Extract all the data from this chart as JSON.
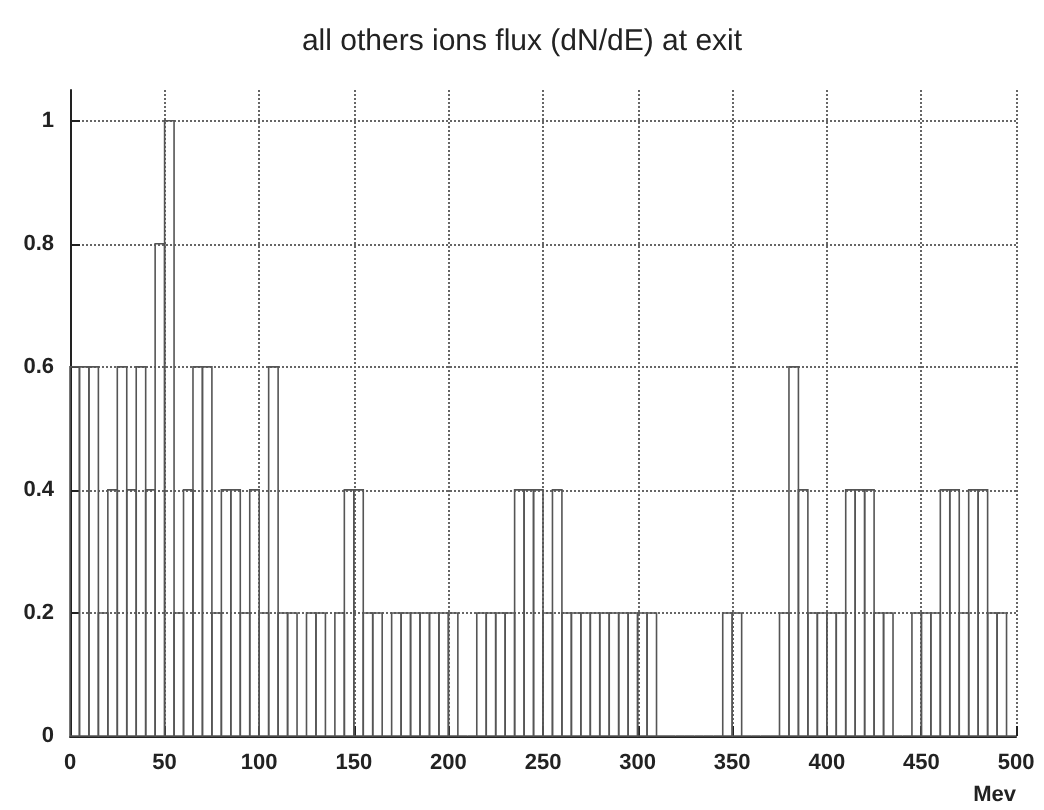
{
  "chart_data": {
    "type": "histogram",
    "title": "all others ions flux (dN/dE) at exit",
    "xlabel": "Mev",
    "bins": [
      0,
      5,
      10,
      15,
      20,
      25,
      30,
      35,
      40,
      45,
      50,
      55,
      60,
      65,
      70,
      75,
      80,
      85,
      90,
      95,
      100,
      105,
      110,
      115,
      120,
      125,
      130,
      135,
      140,
      145,
      150,
      155,
      160,
      165,
      170,
      175,
      180,
      185,
      190,
      195,
      200,
      205,
      210,
      215,
      220,
      225,
      230,
      235,
      240,
      245,
      250,
      255,
      260,
      265,
      270,
      275,
      280,
      285,
      290,
      295,
      300,
      305,
      310,
      315,
      320,
      325,
      330,
      335,
      340,
      345,
      350,
      355,
      360,
      365,
      370,
      375,
      380,
      385,
      390,
      395,
      400,
      405,
      410,
      415,
      420,
      425,
      430,
      435,
      440,
      445,
      450,
      455,
      460,
      465,
      470,
      475,
      480,
      485,
      490,
      495,
      500
    ],
    "values": [
      0.6,
      0.6,
      0.6,
      0.2,
      0.4,
      0.6,
      0.4,
      0.6,
      0.4,
      0.8,
      1.0,
      0.2,
      0.4,
      0.6,
      0.6,
      0.2,
      0.4,
      0.4,
      0.2,
      0.4,
      0.2,
      0.6,
      0.2,
      0.2,
      0,
      0.2,
      0.2,
      0,
      0.2,
      0.4,
      0.4,
      0.2,
      0.2,
      0,
      0.2,
      0.2,
      0.2,
      0.2,
      0.2,
      0.2,
      0.2,
      0,
      0,
      0.2,
      0.2,
      0.2,
      0.2,
      0.4,
      0.4,
      0.4,
      0.2,
      0.4,
      0.2,
      0.2,
      0.2,
      0.2,
      0.2,
      0.2,
      0.2,
      0.2,
      0.2,
      0.2,
      0,
      0,
      0,
      0,
      0,
      0,
      0,
      0.2,
      0.2,
      0,
      0,
      0,
      0,
      0.2,
      0.6,
      0.4,
      0.2,
      0.2,
      0.2,
      0.2,
      0.4,
      0.4,
      0.4,
      0.2,
      0.2,
      0,
      0,
      0.2,
      0.2,
      0.2,
      0.4,
      0.4,
      0.2,
      0.4,
      0.4,
      0.2,
      0.2,
      0
    ],
    "color": "#555555",
    "xlim": [
      0,
      500
    ],
    "xticks": [
      0,
      50,
      100,
      150,
      200,
      250,
      300,
      350,
      400,
      450,
      500
    ],
    "ylim": [
      0,
      1.05
    ],
    "yticks": [
      0,
      0.2,
      0.4,
      0.6,
      0.8,
      1
    ],
    "grid": true
  }
}
